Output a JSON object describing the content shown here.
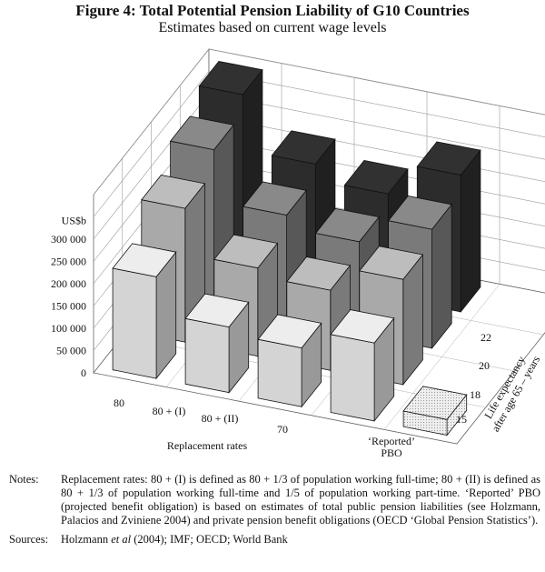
{
  "figure": {
    "title": "Figure 4: Total Potential Pension Liability of G10 Countries",
    "subtitle": "Estimates based on current wage levels"
  },
  "chart_data": {
    "type": "bar",
    "subtype": "3d-grouped-bar",
    "unit_label": "US$b",
    "xlabel": "Replacement rates",
    "ylabel": "Life expectancy after age 65 – years",
    "categories": [
      "80",
      "80 + (I)",
      "80 + (II)",
      "70",
      "‘Reported’ PBO"
    ],
    "depth_categories": [
      "15",
      "18",
      "20",
      "22"
    ],
    "zlim": [
      0,
      300000
    ],
    "zticks": [
      "0",
      "50 000",
      "100 000",
      "150 000",
      "200 000",
      "250 000",
      "300 000"
    ],
    "grid": true,
    "series": [
      {
        "name": "15",
        "color": "#d4d4d4",
        "values": [
          228000,
          147000,
          132000,
          175000,
          35000
        ]
      },
      {
        "name": "18",
        "color": "#a9a9a9",
        "values": [
          300000,
          198000,
          180000,
          236000,
          null
        ]
      },
      {
        "name": "20",
        "color": "#7a7a7a",
        "values": [
          350000,
          235000,
          207000,
          267000,
          null
        ]
      },
      {
        "name": "22",
        "color": "#2c2c2c",
        "values": [
          392000,
          268000,
          233000,
          307000,
          null
        ]
      }
    ],
    "pbo_color": "#e6e6e6"
  },
  "notes": {
    "label": "Notes:",
    "text": "Replacement rates: 80 + (I) is defined as 80 + 1/3 of population working full-time; 80 + (II) is defined as 80 + 1/3 of population working full-time and 1/5 of population working part-time. ‘Reported’ PBO (projected benefit obligation) is based on estimates of total public pension liabilities (see Holzmann, Palacios and Zviniene 2004) and private pension benefit obligations (OECD ‘Global Pension Statistics’)."
  },
  "sources": {
    "label": "Sources:",
    "text_a": "Holzmann ",
    "text_b": "et al",
    "text_c": " (2004); IMF; OECD; World Bank"
  }
}
